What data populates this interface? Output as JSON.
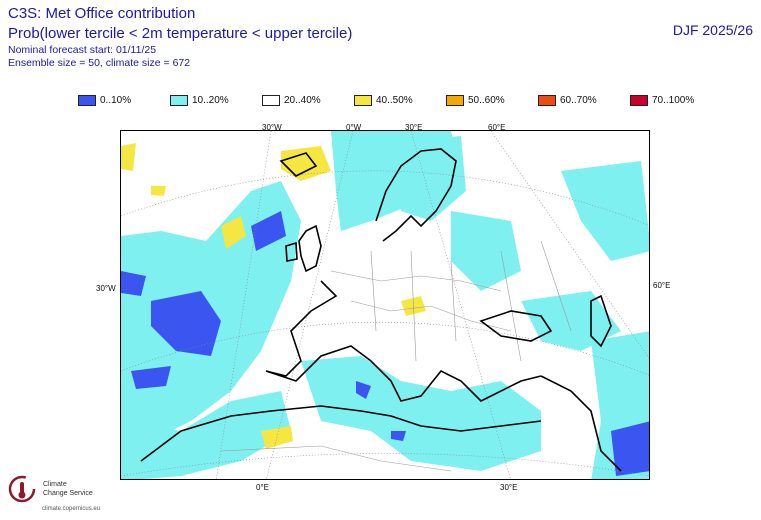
{
  "header": {
    "line1": "C3S: Met Office contribution",
    "line2": "Prob(lower tercile < 2m temperature < upper tercile)",
    "line3": "Nominal forecast start: 01/11/25",
    "line4": "Ensemble size = 50, climate size = 672",
    "season": "DJF 2025/26"
  },
  "legend": [
    {
      "label": "0..10%",
      "color": "#3a55f0"
    },
    {
      "label": "10..20%",
      "color": "#7ff0f0"
    },
    {
      "label": "20..40%",
      "color": "#ffffff"
    },
    {
      "label": "40..50%",
      "color": "#f5e642"
    },
    {
      "label": "50..60%",
      "color": "#f5a800"
    },
    {
      "label": "60..70%",
      "color": "#f04a10"
    },
    {
      "label": "70..100%",
      "color": "#c8002a"
    }
  ],
  "grid_labels": {
    "top": [
      "30°W",
      "0°W",
      "30°E",
      "60°E"
    ],
    "left": "30°W",
    "right": "60°E",
    "bottom": [
      "0°E",
      "30°E"
    ]
  },
  "logo": {
    "name_line1": "Climate",
    "name_line2": "Change Service",
    "url": "climate.copernicus.eu"
  },
  "colors": {
    "text": "#1a1aa6",
    "coast": "#000000",
    "border": "#9a9a9a"
  }
}
